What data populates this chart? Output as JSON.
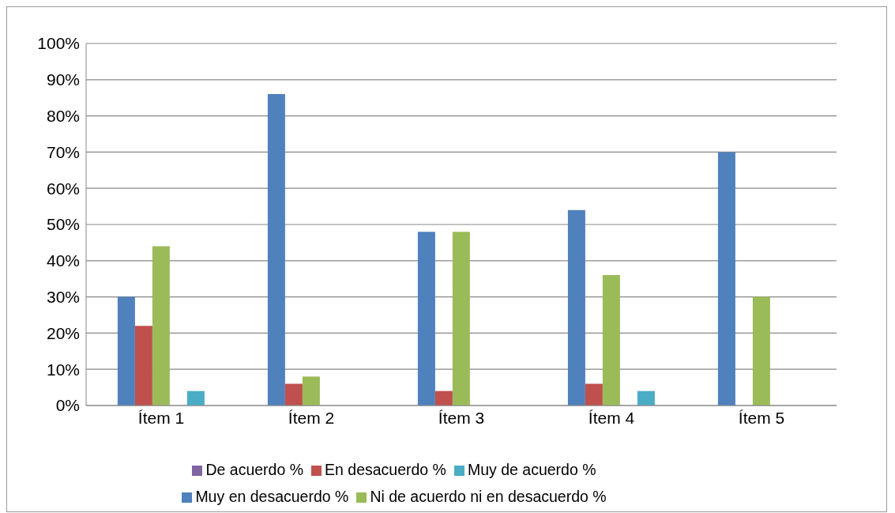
{
  "chart_data": {
    "type": "bar",
    "categories": [
      "Ítem 1",
      "Ítem 2",
      "Ítem 3",
      "Ítem 4",
      "Ítem 5"
    ],
    "series": [
      {
        "name": "Muy en desacuerdo %",
        "color": "#4f81bd",
        "values": [
          30,
          86,
          48,
          54,
          70
        ]
      },
      {
        "name": "En desacuerdo %",
        "color": "#c0504d",
        "values": [
          22,
          6,
          4,
          6,
          0
        ]
      },
      {
        "name": "Ni de acuerdo ni en desacuerdo %",
        "color": "#9bbb59",
        "values": [
          44,
          8,
          48,
          36,
          30
        ]
      },
      {
        "name": "De acuerdo %",
        "color": "#8064a2",
        "values": [
          0,
          0,
          0,
          0,
          0
        ]
      },
      {
        "name": "Muy de acuerdo %",
        "color": "#4bacc6",
        "values": [
          4,
          0,
          0,
          4,
          0
        ]
      }
    ],
    "ylim": [
      0,
      100
    ],
    "yticks": [
      {
        "value": 0,
        "label": "0%"
      },
      {
        "value": 10,
        "label": "10%"
      },
      {
        "value": 20,
        "label": "20%"
      },
      {
        "value": 30,
        "label": "30%"
      },
      {
        "value": 40,
        "label": "40%"
      },
      {
        "value": 50,
        "label": "50%"
      },
      {
        "value": 60,
        "label": "60%"
      },
      {
        "value": 70,
        "label": "70%"
      },
      {
        "value": 80,
        "label": "80%"
      },
      {
        "value": 90,
        "label": "90%"
      },
      {
        "value": 100,
        "label": "100%"
      }
    ],
    "grid": "y",
    "legend": "bottom"
  }
}
